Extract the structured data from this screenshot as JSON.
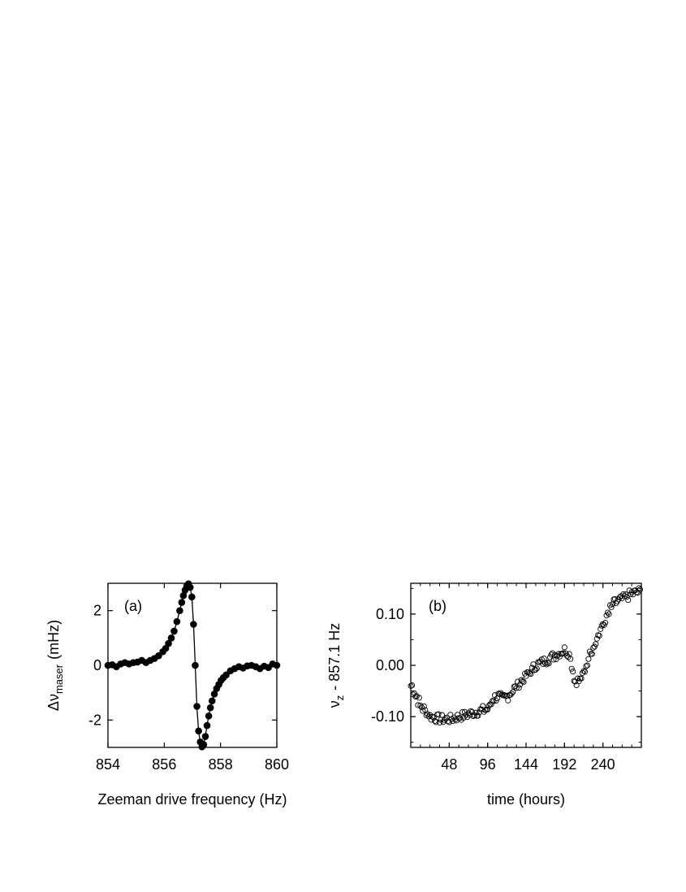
{
  "chart_data": [
    {
      "type": "scatter",
      "panel_label": "(a)",
      "xlabel": "Zeeman drive frequency (Hz)",
      "ylabel_symbol": "Δν",
      "ylabel_subscript": "maser",
      "ylabel_unit": "(mHz)",
      "xlim": [
        854,
        860
      ],
      "ylim": [
        -3,
        3
      ],
      "xticks": [
        854,
        856,
        858,
        860
      ],
      "yticks": [
        -2,
        0,
        2
      ],
      "connected_line": true,
      "marker": "filled-circle",
      "series": [
        {
          "x": [
            854.0,
            854.15,
            854.3,
            854.45,
            854.6,
            854.75,
            854.9,
            855.05,
            855.2,
            855.35,
            855.5,
            855.65,
            855.8,
            855.95,
            856.05,
            856.15,
            856.25,
            856.35,
            856.45,
            856.55,
            856.62,
            856.68,
            856.74,
            856.8,
            856.86,
            856.92,
            856.98,
            857.04,
            857.1,
            857.16,
            857.22,
            857.28,
            857.34,
            857.4,
            857.46,
            857.52,
            857.58,
            857.64,
            857.7,
            857.78,
            857.86,
            857.94,
            858.02,
            858.1,
            858.2,
            858.35,
            858.5,
            858.65,
            858.8,
            858.95,
            859.1,
            859.25,
            859.4,
            859.55,
            859.7,
            859.85,
            860.0
          ],
          "y": [
            0.0,
            0.02,
            -0.05,
            0.05,
            0.1,
            0.05,
            0.1,
            0.12,
            0.18,
            0.1,
            0.18,
            0.25,
            0.35,
            0.5,
            0.62,
            0.8,
            1.0,
            1.25,
            1.6,
            2.0,
            2.3,
            2.55,
            2.75,
            2.9,
            2.98,
            2.85,
            2.5,
            1.5,
            0.0,
            -1.5,
            -2.4,
            -2.8,
            -2.98,
            -2.9,
            -2.6,
            -2.2,
            -1.85,
            -1.55,
            -1.3,
            -1.05,
            -0.85,
            -0.7,
            -0.55,
            -0.45,
            -0.35,
            -0.2,
            -0.12,
            -0.05,
            -0.1,
            -0.02,
            0.0,
            -0.05,
            -0.12,
            -0.03,
            -0.08,
            0.05,
            0.0
          ]
        }
      ]
    },
    {
      "type": "scatter",
      "panel_label": "(b)",
      "xlabel": "time (hours)",
      "ylabel_symbol": "ν",
      "ylabel_subscript": "z",
      "ylabel_unit": "- 857.1 Hz",
      "xlim": [
        0,
        288
      ],
      "ylim": [
        -0.16,
        0.16
      ],
      "xticks": [
        48,
        96,
        144,
        192,
        240
      ],
      "yticks": [
        -0.1,
        0.0,
        0.1
      ],
      "ytick_labels": [
        "-0.10",
        "0.00",
        "0.10"
      ],
      "marker": "open-circle",
      "series": [
        {
          "x": [
            0,
            12,
            24,
            36,
            48,
            60,
            72,
            84,
            96,
            102,
            108,
            114,
            120,
            132,
            144,
            156,
            168,
            180,
            192,
            198,
            204,
            210,
            216,
            222,
            228,
            240,
            252,
            264,
            276,
            288
          ],
          "y": [
            -0.04,
            -0.08,
            -0.1,
            -0.105,
            -0.105,
            -0.1,
            -0.095,
            -0.09,
            -0.085,
            -0.065,
            -0.06,
            -0.065,
            -0.06,
            -0.04,
            -0.02,
            0.0,
            0.01,
            0.02,
            0.03,
            0.02,
            -0.03,
            -0.03,
            -0.015,
            0.02,
            0.04,
            0.08,
            0.12,
            0.13,
            0.14,
            0.145
          ]
        }
      ]
    }
  ]
}
